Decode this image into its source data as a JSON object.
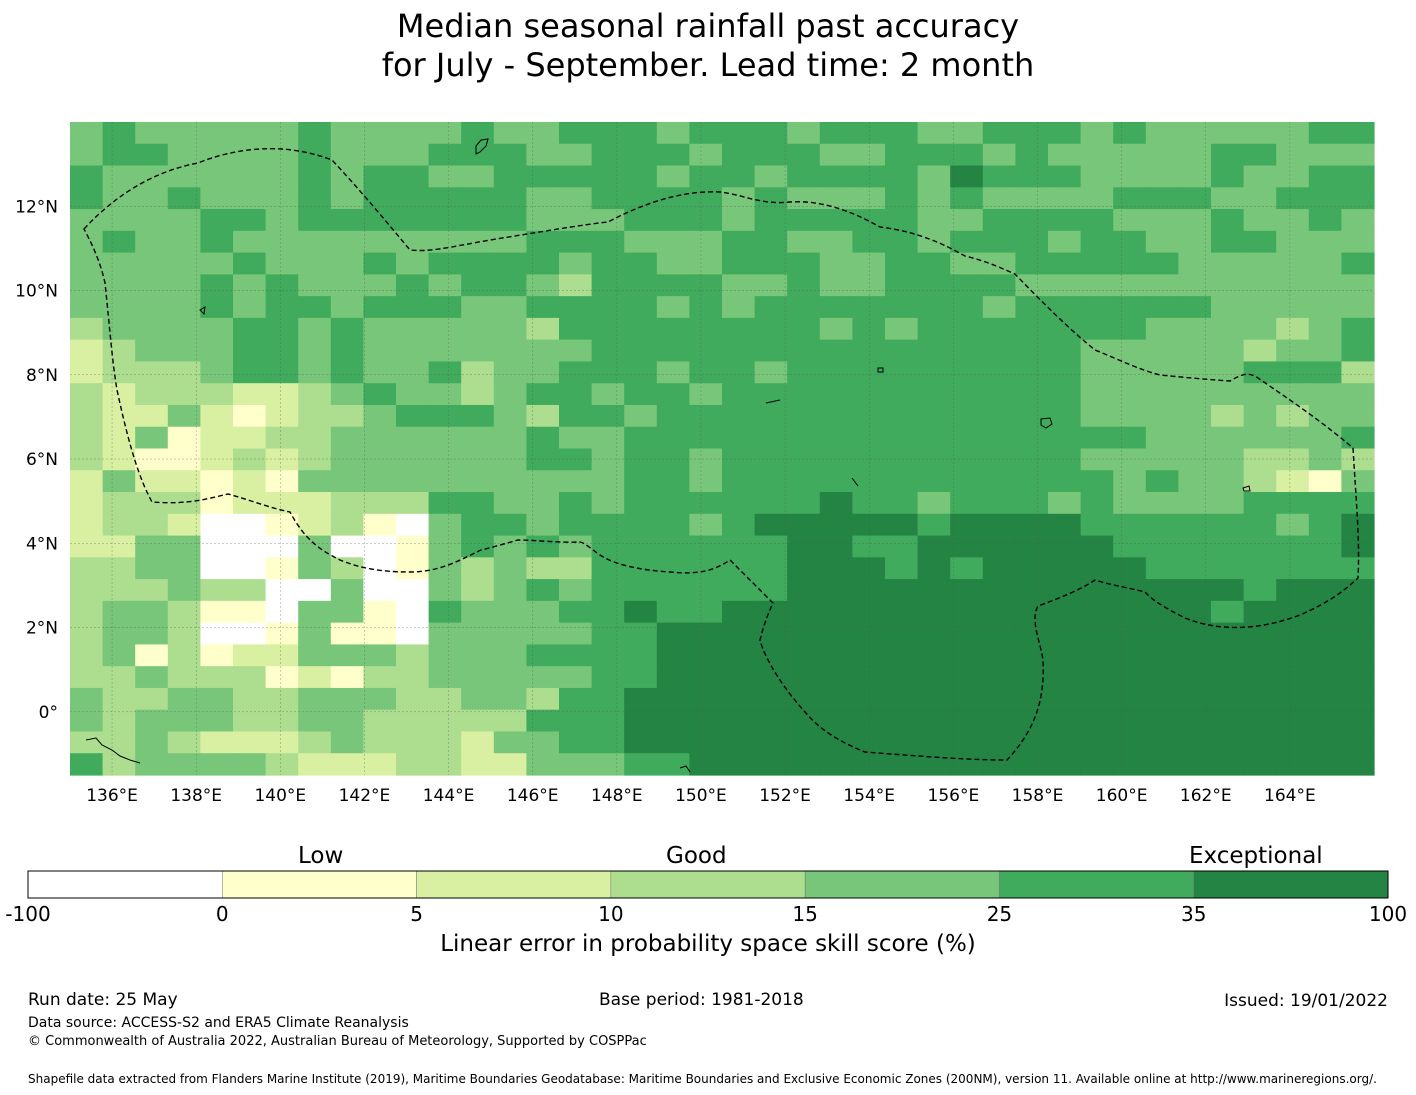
{
  "title": {
    "line1": "Median seasonal rainfall past accuracy",
    "line2": "for July - September. Lead time: 2 month"
  },
  "map": {
    "lat_labels": [
      "12°N",
      "10°N",
      "8°N",
      "6°N",
      "4°N",
      "2°N",
      "0°"
    ],
    "lon_labels": [
      "136°E",
      "138°E",
      "140°E",
      "142°E",
      "144°E",
      "146°E",
      "148°E",
      "150°E",
      "152°E",
      "154°E",
      "156°E",
      "158°E",
      "160°E",
      "162°E",
      "164°E"
    ],
    "lat_values": [
      12,
      10,
      8,
      6,
      4,
      2,
      0
    ],
    "lon_values": [
      136,
      138,
      140,
      142,
      144,
      146,
      148,
      150,
      152,
      154,
      156,
      158,
      160,
      162,
      164
    ],
    "extent": {
      "lon_min": 135,
      "lon_max": 166,
      "lat_min": -1.5,
      "lat_max": 14
    },
    "grid_resolution_deg": 0.833,
    "boundary_style": "dashed",
    "level_index_grid_note": "each cell value is a colour-class index into legend.classes",
    "level_rows": [
      "4544444544445445554555455544555454444455",
      "4554444544455544555455544555454444455444",
      "5444444545544555554554555546555444454455",
      "5445444545555544555545444545444455544555",
      "4444554555555544455545555544555544454454",
      "4544544444444455544455445545554554455444",
      "4444454445455554554455544554455555444445",
      "4444545444545543555544544555544444444444",
      "4444545545554455554545555555455555544444",
      "3444455454444435555555545455555554444345",
      "2344455454444444555555555555555444443445",
      "2333455454453445554554555555555444445553",
      "3233322345443455455455555555555444444444",
      "3224212334555435545555555555555444434344",
      "3241223344444454455555555555555554444445",
      "3211232344444455455455555555555444443343",
      "2422121444444444455455555555555545443214",
      "2333122233355445455555565545554544445555",
      "2332001231045545555456666656666555555456",
      "2244000400145454555555665566666655555556",
      "3344001430143433555555666565666665555555",
      "3334330040043454555555666666666666665666",
      "3443110441054445565566666666666666656666",
      "3443001411044444556666666666666666666666",
      "3413122444344455556666666666666666666666",
      "3343331213344444556666666666666666666666",
      "4334433444334435566666666666666666666666",
      "4344433443333355566666666666666666666666",
      "3343222343332445566666666666666666666666",
      "5344443222332244455666666666666666666666"
    ]
  },
  "legend": {
    "category_low": "Low",
    "category_good": "Good",
    "category_exceptional": "Exceptional",
    "classes": [
      {
        "from": -100,
        "to": 0,
        "color": "#ffffff"
      },
      {
        "from": 0,
        "to": 5,
        "color": "#ffffcc"
      },
      {
        "from": 5,
        "to": 10,
        "color": "#d9f0a3"
      },
      {
        "from": 10,
        "to": 15,
        "color": "#addd8e"
      },
      {
        "from": 15,
        "to": 25,
        "color": "#78c679"
      },
      {
        "from": 25,
        "to": 35,
        "color": "#41ab5d"
      },
      {
        "from": 35,
        "to": 100,
        "color": "#238443"
      }
    ],
    "tick_labels": [
      "-100",
      "0",
      "5",
      "10",
      "15",
      "25",
      "35",
      "100"
    ],
    "title": "Linear error in probability space skill score (%)"
  },
  "footer": {
    "run_date": "Run date: 25 May",
    "base_period": "Base period: 1981-2018",
    "issued": "Issued: 19/01/2022",
    "data_source": "Data source: ACCESS-S2 and ERA5 Climate Reanalysis",
    "copyright": "© Commonwealth of Australia 2022, Australian Bureau of Meteorology, Supported by COSPPac",
    "shapefile_note": "Shapefile data extracted from Flanders Marine Institute (2019), Maritime Boundaries Geodatabase: Maritime Boundaries and Exclusive Economic Zones (200NM), version 11. Available online at http://www.marineregions.org/."
  }
}
